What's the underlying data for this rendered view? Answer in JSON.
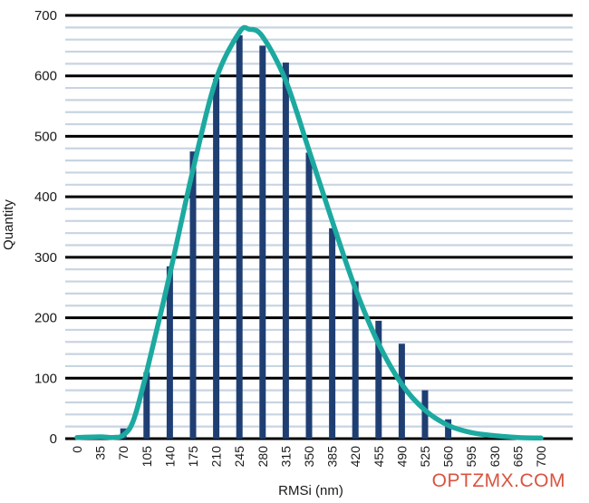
{
  "chart_data": {
    "type": "bar",
    "xlabel": "RMSi (nm)",
    "ylabel": "Quantity",
    "ylim": [
      0,
      700
    ],
    "y_ticks": [
      0,
      100,
      200,
      300,
      400,
      500,
      600,
      700
    ],
    "grid": "horizontal major and minor",
    "categories": [
      "0",
      "35",
      "70",
      "105",
      "140",
      "175",
      "210",
      "245",
      "280",
      "315",
      "350",
      "385",
      "420",
      "455",
      "490",
      "525",
      "560",
      "595",
      "630",
      "665",
      "700"
    ],
    "series": [
      {
        "type": "bar",
        "color": "#1f3f73",
        "values": [
          0,
          0,
          17,
          110,
          285,
          475,
          595,
          667,
          650,
          622,
          473,
          348,
          260,
          195,
          157,
          80,
          32,
          0,
          0,
          0,
          0
        ]
      },
      {
        "type": "line",
        "color": "#1ca9a0",
        "x": [
          0,
          35,
          55,
          70,
          85,
          105,
          140,
          175,
          210,
          245,
          260,
          280,
          315,
          350,
          385,
          420,
          455,
          490,
          525,
          560,
          595,
          630,
          665,
          700
        ],
        "values": [
          2,
          3,
          2,
          6,
          30,
          110,
          272,
          445,
          595,
          672,
          677,
          665,
          592,
          477,
          360,
          248,
          157,
          90,
          47,
          22,
          10,
          5,
          2,
          1
        ]
      }
    ]
  },
  "colors": {
    "major_grid": "#000000",
    "minor_grid": "#c8d4e2",
    "bar": "#1f3f73",
    "curve": "#1ca9a0",
    "watermark": "#d9533f"
  },
  "watermark": "OPTZMX.COM"
}
